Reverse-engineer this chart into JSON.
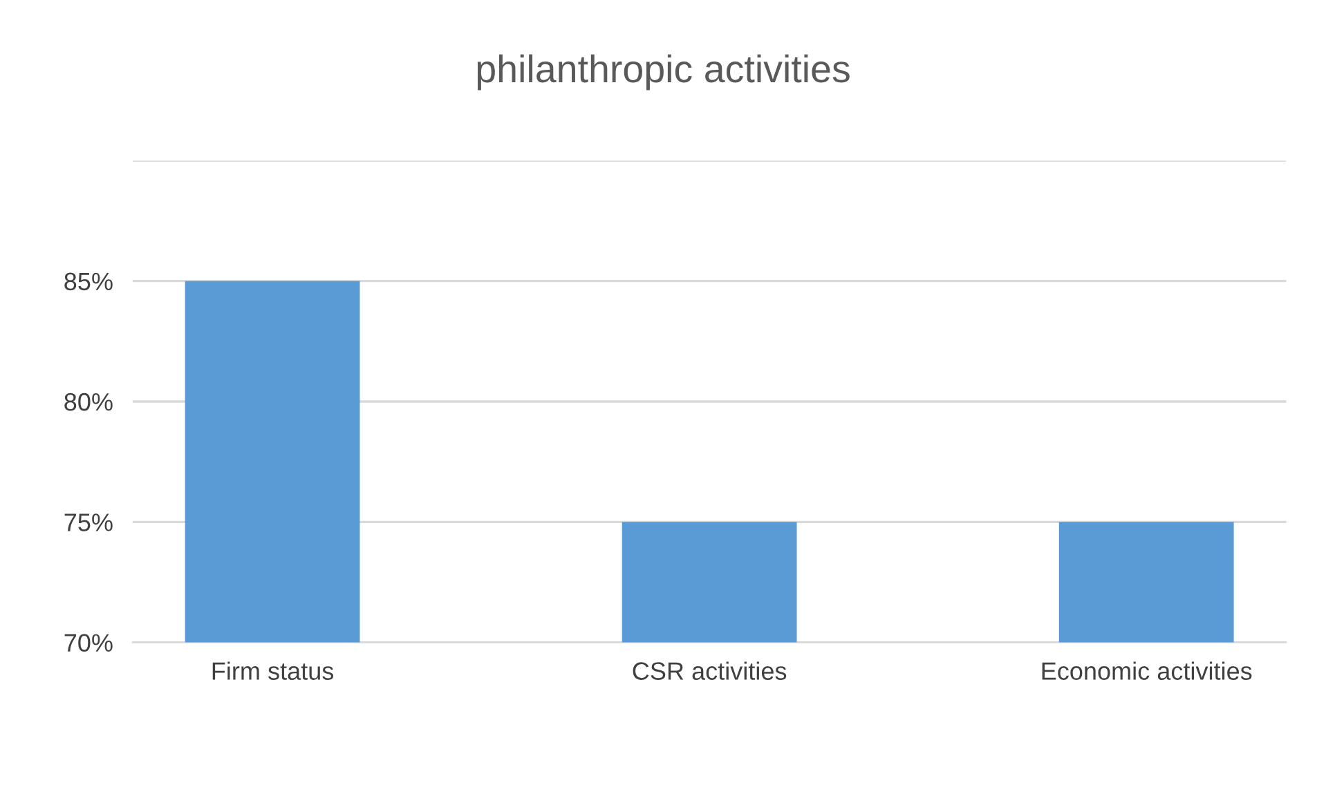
{
  "chart_data": {
    "type": "bar",
    "title": "philanthropic activities",
    "categories": [
      "Firm status",
      "CSR activities",
      "Economic activities"
    ],
    "values": [
      85,
      75,
      75
    ],
    "color": "#5b9bd5",
    "ylim": [
      70,
      90
    ],
    "yticks": [
      {
        "value": 70,
        "label": "70%"
      },
      {
        "value": 75,
        "label": "75%"
      },
      {
        "value": 80,
        "label": "80%"
      },
      {
        "value": 85,
        "label": "85%"
      },
      {
        "value": 90,
        "label": null
      }
    ],
    "grid": "y"
  }
}
